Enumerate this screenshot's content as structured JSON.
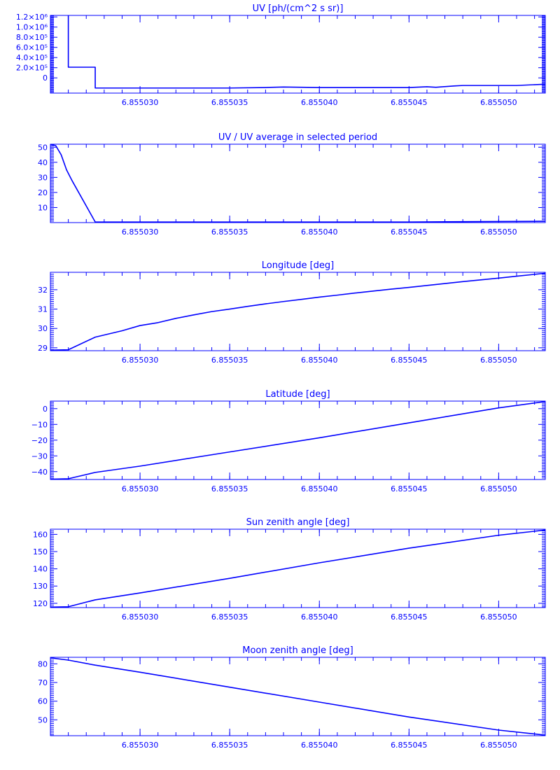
{
  "figure": {
    "color": "#0000ff",
    "background": "#ffffff"
  },
  "chart_data": [
    {
      "type": "line",
      "title": "UV [ph/(cm^2 s sr)]",
      "xlabel": "",
      "ylabel": "",
      "xlim": [
        6.855025,
        6.8550526
      ],
      "ylim": [
        -300000,
        1230000
      ],
      "xticks": [
        6.85503,
        6.855035,
        6.85504,
        6.855045,
        6.85505
      ],
      "xtick_labels": [
        "6.855030",
        "6.855035",
        "6.855040",
        "6.855045",
        "6.855050"
      ],
      "yticks": [
        0,
        200000,
        400000,
        600000,
        800000,
        1000000,
        1200000
      ],
      "ytick_labels": [
        "0",
        "2.0×10⁵",
        "4.0×10⁵",
        "6.0×10⁵",
        "8.0×10⁵",
        "1.0×10⁶",
        "1.2×10⁶"
      ],
      "yminor_step": 20000,
      "grid": false,
      "series": [
        {
          "x": [
            6.855026,
            6.855026,
            6.855026,
            6.8550275,
            6.8550275,
            6.855035,
            6.855037,
            6.855038,
            6.855039,
            6.85504,
            6.855045,
            6.855046,
            6.8550465,
            6.8550475,
            6.855048,
            6.855051,
            6.8550526
          ],
          "y": [
            1230000,
            1230000,
            210000,
            210000,
            -200000,
            -200000,
            -190000,
            -180000,
            -185000,
            -190000,
            -190000,
            -175000,
            -185000,
            -160000,
            -150000,
            -150000,
            -125000
          ]
        }
      ]
    },
    {
      "type": "line",
      "title": "UV / UV average in selected period",
      "xlabel": "",
      "ylabel": "",
      "xlim": [
        6.855025,
        6.8550526
      ],
      "ylim": [
        0,
        52
      ],
      "xticks": [
        6.85503,
        6.855035,
        6.85504,
        6.855045,
        6.85505
      ],
      "xtick_labels": [
        "6.855030",
        "6.855035",
        "6.855040",
        "6.855045",
        "6.855050"
      ],
      "yticks": [
        10,
        20,
        30,
        40,
        50
      ],
      "ytick_labels": [
        "10",
        "20",
        "30",
        "40",
        "50"
      ],
      "yminor_step": 1,
      "grid": false,
      "series": [
        {
          "x": [
            6.855025,
            6.8550253,
            6.8550256,
            6.8550259,
            6.8550262,
            6.8550275,
            6.855045,
            6.855048,
            6.8550526
          ],
          "y": [
            52,
            51,
            45,
            35,
            28,
            0.4,
            0.4,
            0.6,
            0.9
          ]
        }
      ]
    },
    {
      "type": "line",
      "title": "Longitude [deg]",
      "xlabel": "",
      "ylabel": "",
      "xlim": [
        6.855025,
        6.8550526
      ],
      "ylim": [
        28.85,
        32.9
      ],
      "xticks": [
        6.85503,
        6.855035,
        6.85504,
        6.855045,
        6.85505
      ],
      "xtick_labels": [
        "6.855030",
        "6.855035",
        "6.855040",
        "6.855045",
        "6.855050"
      ],
      "yticks": [
        29,
        30,
        31,
        32
      ],
      "ytick_labels": [
        "29",
        "30",
        "31",
        "32"
      ],
      "yminor_step": 0.1,
      "grid": false,
      "series": [
        {
          "x": [
            6.855025,
            6.855026,
            6.8550275,
            6.855029,
            6.85503,
            6.855031,
            6.855032,
            6.855033,
            6.855034,
            6.855035,
            6.855036,
            6.855037,
            6.855038,
            6.855039,
            6.85504,
            6.855041,
            6.855042,
            6.855043,
            6.855044,
            6.855045,
            6.855046,
            6.855047,
            6.855048,
            6.855049,
            6.85505,
            6.855051,
            6.8550526
          ],
          "y": [
            28.88,
            28.9,
            29.55,
            29.88,
            30.15,
            30.3,
            30.52,
            30.7,
            30.87,
            31.0,
            31.14,
            31.27,
            31.39,
            31.5,
            31.62,
            31.72,
            31.83,
            31.93,
            32.03,
            32.12,
            32.22,
            32.32,
            32.42,
            32.51,
            32.6,
            32.7,
            32.85
          ]
        }
      ]
    },
    {
      "type": "line",
      "title": "Latitude [deg]",
      "xlabel": "",
      "ylabel": "",
      "xlim": [
        6.855025,
        6.8550526
      ],
      "ylim": [
        -45,
        4.8
      ],
      "xticks": [
        6.85503,
        6.855035,
        6.85504,
        6.855045,
        6.85505
      ],
      "xtick_labels": [
        "6.855030",
        "6.855035",
        "6.855040",
        "6.855045",
        "6.855050"
      ],
      "yticks": [
        -40,
        -30,
        -20,
        -10,
        0
      ],
      "ytick_labels": [
        "−40",
        "−30",
        "−20",
        "−10",
        "0"
      ],
      "yminor_step": 1,
      "grid": false,
      "series": [
        {
          "x": [
            6.855025,
            6.855026,
            6.8550275,
            6.85503,
            6.855035,
            6.85504,
            6.855045,
            6.85505,
            6.8550526
          ],
          "y": [
            -44.8,
            -44.5,
            -40.5,
            -36.5,
            -27.5,
            -18.5,
            -9.0,
            0.5,
            4.5
          ]
        }
      ]
    },
    {
      "type": "line",
      "title": "Sun zenith angle [deg]",
      "xlabel": "",
      "ylabel": "",
      "xlim": [
        6.855025,
        6.8550526
      ],
      "ylim": [
        117.5,
        163
      ],
      "xticks": [
        6.85503,
        6.855035,
        6.85504,
        6.855045,
        6.85505
      ],
      "xtick_labels": [
        "6.855030",
        "6.855035",
        "6.855040",
        "6.855045",
        "6.855050"
      ],
      "yticks": [
        120,
        130,
        140,
        150,
        160
      ],
      "ytick_labels": [
        "120",
        "130",
        "140",
        "150",
        "160"
      ],
      "yminor_step": 1,
      "grid": false,
      "series": [
        {
          "x": [
            6.855025,
            6.855026,
            6.8550275,
            6.85503,
            6.855035,
            6.85504,
            6.855045,
            6.85505,
            6.8550526
          ],
          "y": [
            117.8,
            118.0,
            122.0,
            126.0,
            134.5,
            143.5,
            152.0,
            159.5,
            162.5
          ]
        }
      ]
    },
    {
      "type": "line",
      "title": "Moon zenith angle [deg]",
      "xlabel": "",
      "ylabel": "",
      "xlim": [
        6.855025,
        6.8550526
      ],
      "ylim": [
        41.5,
        83.5
      ],
      "xticks": [
        6.85503,
        6.855035,
        6.85504,
        6.855045,
        6.85505
      ],
      "xtick_labels": [
        "6.855030",
        "6.855035",
        "6.855040",
        "6.855045",
        "6.855050"
      ],
      "yticks": [
        50,
        60,
        70,
        80
      ],
      "ytick_labels": [
        "50",
        "60",
        "70",
        "80"
      ],
      "yminor_step": 1,
      "grid": false,
      "series": [
        {
          "x": [
            6.855025,
            6.855026,
            6.8550275,
            6.85503,
            6.855035,
            6.85504,
            6.855045,
            6.85505,
            6.8550526
          ],
          "y": [
            83.2,
            82.0,
            79.3,
            75.5,
            67.5,
            59.5,
            51.5,
            44.5,
            41.8
          ]
        }
      ]
    }
  ]
}
